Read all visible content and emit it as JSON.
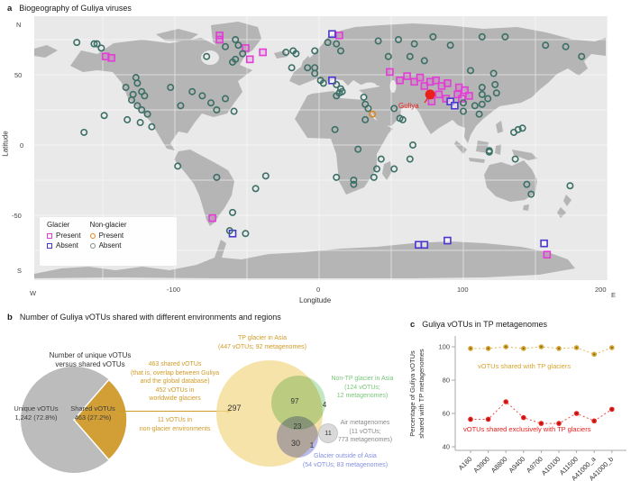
{
  "colors": {
    "glacier_present": "#e23ed6",
    "glacier_absent": "#4936cf",
    "nonglacier_present": "#e0861f",
    "nonglacier_absent": "#3c6f66",
    "guliya_red": "#e8211d",
    "gold": "#cf9b28",
    "pie_gray": "#bcbcbc",
    "pie_gold": "#d29e36",
    "venn_yellow": "#f3d98d",
    "venn_green": "#8fcf8f",
    "venn_blue": "#7b82d8",
    "venn_gray": "#d9d9d9",
    "land": "#b5b5b5",
    "sea": "#e9e9e9"
  },
  "panel_a": {
    "label": "a",
    "title": "Biogeography of Guliya viruses",
    "x_label": "Longitude",
    "y_label": "Latitude",
    "x_ticks": [
      "W",
      "-100",
      "0",
      "100",
      "200",
      "E"
    ],
    "y_ticks": [
      "N",
      "50",
      "0",
      "-50",
      "S"
    ],
    "legend": {
      "glacier": "Glacier",
      "nonglacier": "Non-glacier",
      "present": "Present",
      "absent": "Absent"
    },
    "guliya_label": "Guliya"
  },
  "panel_b": {
    "label": "b",
    "title": "Number of Guliya vOTUs shared with different environments and regions",
    "pie_heading_line1": "Number of unique vOTUs",
    "pie_heading_line2": "versus shared vOTUs",
    "pie_labels": {
      "unique_name": "Unique vOTUs",
      "unique_value": "1,242 (72.8%)",
      "shared_name": "Shared vOTUs",
      "shared_value": "463 (27.2%)"
    },
    "arrow_text": {
      "l1": "463 shared vOTUs",
      "l2": "(that is, overlap between Guliya",
      "l3": "and the global database)",
      "l4": "452 vOTUs in",
      "l5": "worldwide glaciers",
      "l6": "11 vOTUs in",
      "l7": "non-glacier environments"
    },
    "venn": {
      "tp_label1": "TP glacier in Asia",
      "tp_label2": "(447 vOTUs; 92 metagenomes)",
      "nontp_label1": "Non-TP glacier in Asia",
      "nontp_label2": "(124 vOTUs;",
      "nontp_label3": "12 metagenomes)",
      "air_label1": "Air metagenomes",
      "air_label2": "(11 vOTUs;",
      "air_label3": "773 metagenomes)",
      "outside_label1": "Glacier outside of Asia",
      "outside_label2": "(54 vOTUs; 83 metagenomes)",
      "counts": {
        "tp_only": "297",
        "tp_nontp": "97",
        "nontp_only": "4",
        "tp_nontp_outside": "23",
        "tp_outside": "30",
        "outside_only": "1",
        "air": "11"
      }
    }
  },
  "panel_c": {
    "label": "c",
    "title": "Guliya vOTUs in TP metagenomes"
  },
  "chart_data": [
    {
      "type": "scatter",
      "title": "Biogeography of Guliya viruses",
      "xlabel": "Longitude",
      "ylabel": "Latitude",
      "x_ticks": [
        "W",
        "-100",
        "0",
        "100",
        "200",
        "E"
      ],
      "y_ticks": [
        "N",
        "50",
        "0",
        "-50",
        "S"
      ],
      "note": "points are [longitude, latitude]",
      "series": [
        {
          "name": "Glacier Present",
          "marker": "square",
          "color": "#e23ed6",
          "fill": "rgba(226,62,214,0.18)",
          "points": [
            [
              56,
              46
            ],
            [
              61,
              49
            ],
            [
              66,
              45
            ],
            [
              70,
              48
            ],
            [
              73,
              42
            ],
            [
              77,
              45
            ],
            [
              81,
              46
            ],
            [
              85,
              42
            ],
            [
              89,
              44
            ],
            [
              97,
              41
            ],
            [
              96,
              36
            ],
            [
              99,
              33
            ],
            [
              101,
              39
            ],
            [
              104,
              35
            ],
            [
              88,
              33
            ],
            [
              83,
              36
            ],
            [
              78,
              31
            ],
            [
              -148,
              63
            ],
            [
              -144,
              62
            ],
            [
              -69,
              78
            ],
            [
              -69,
              75
            ],
            [
              -51,
              69
            ],
            [
              -39,
              66
            ],
            [
              -48,
              61
            ],
            [
              14,
              78
            ],
            [
              49,
              52
            ],
            [
              -74,
              -52
            ],
            [
              158,
              -78
            ]
          ]
        },
        {
          "name": "Glacier Absent",
          "marker": "square",
          "color": "#4936cf",
          "fill": "rgba(255,255,255,0.55)",
          "points": [
            [
              9,
              79
            ],
            [
              9,
              46
            ],
            [
              91,
              31
            ],
            [
              94,
              28
            ],
            [
              -60,
              -63
            ],
            [
              69,
              -71
            ],
            [
              73,
              -71
            ],
            [
              89,
              -68
            ],
            [
              156,
              -70
            ]
          ]
        },
        {
          "name": "Non-glacier Present",
          "marker": "circle",
          "color": "#e0861f",
          "fill": "none",
          "points": [
            [
              37,
              22
            ]
          ]
        },
        {
          "name": "Non-glacier Absent",
          "marker": "circle",
          "color": "#3c6f66",
          "fill": "none",
          "points": [
            [
              -168,
              73
            ],
            [
              -156,
              72
            ],
            [
              -154,
              72
            ],
            [
              -151,
              69
            ],
            [
              -127,
              48
            ],
            [
              -126,
              44
            ],
            [
              -123,
              38
            ],
            [
              -121,
              35
            ],
            [
              -149,
              21
            ],
            [
              -133,
              18
            ],
            [
              -124,
              16
            ],
            [
              -163,
              9
            ],
            [
              -134,
              41
            ],
            [
              -129,
              36
            ],
            [
              -130,
              32
            ],
            [
              -126,
              28
            ],
            [
              -123,
              25
            ],
            [
              -119,
              22
            ],
            [
              -116,
              13
            ],
            [
              -103,
              41
            ],
            [
              -96,
              28
            ],
            [
              -88,
              38
            ],
            [
              -81,
              35
            ],
            [
              -75,
              30
            ],
            [
              -71,
              25
            ],
            [
              -65,
              33
            ],
            [
              -59,
              24
            ],
            [
              -78,
              63
            ],
            [
              -65,
              70
            ],
            [
              -58,
              75
            ],
            [
              -56,
              71
            ],
            [
              -53,
              65
            ],
            [
              -58,
              61
            ],
            [
              -60,
              59
            ],
            [
              -23,
              66
            ],
            [
              -18,
              67
            ],
            [
              -16,
              65
            ],
            [
              -3,
              67
            ],
            [
              6,
              73
            ],
            [
              12,
              72
            ],
            [
              15,
              67
            ],
            [
              -19,
              55
            ],
            [
              -8,
              55
            ],
            [
              -3,
              55
            ],
            [
              -3,
              51
            ],
            [
              1,
              46
            ],
            [
              3,
              44
            ],
            [
              12,
              43
            ],
            [
              15,
              40
            ],
            [
              14,
              37
            ],
            [
              16,
              38
            ],
            [
              31,
              34
            ],
            [
              32,
              29
            ],
            [
              34,
              26
            ],
            [
              32,
              18
            ],
            [
              12,
              35
            ],
            [
              52,
              26
            ],
            [
              56,
              19
            ],
            [
              58,
              18
            ],
            [
              11,
              11
            ],
            [
              27,
              -3
            ],
            [
              12,
              -23
            ],
            [
              24,
              -25
            ],
            [
              24,
              -28
            ],
            [
              38,
              -23
            ],
            [
              40,
              -17
            ],
            [
              52,
              -17
            ],
            [
              43,
              -10
            ],
            [
              63,
              -10
            ],
            [
              65,
              0
            ],
            [
              41,
              74
            ],
            [
              55,
              75
            ],
            [
              66,
              72
            ],
            [
              79,
              77
            ],
            [
              91,
              71
            ],
            [
              113,
              77
            ],
            [
              129,
              77
            ],
            [
              157,
              71
            ],
            [
              171,
              70
            ],
            [
              182,
              63
            ],
            [
              48,
              63
            ],
            [
              63,
              63
            ],
            [
              73,
              60
            ],
            [
              105,
              53
            ],
            [
              121,
              51
            ],
            [
              122,
              43
            ],
            [
              113,
              41
            ],
            [
              123,
              37
            ],
            [
              113,
              36
            ],
            [
              117,
              33
            ],
            [
              113,
              29
            ],
            [
              100,
              30
            ],
            [
              108,
              28
            ],
            [
              100,
              24
            ],
            [
              111,
              22
            ],
            [
              135,
              9
            ],
            [
              138,
              11
            ],
            [
              141,
              12
            ],
            [
              118,
              -4
            ],
            [
              118,
              -5
            ],
            [
              136,
              -10
            ],
            [
              144,
              -28
            ],
            [
              147,
              -35
            ],
            [
              174,
              -29
            ],
            [
              -98,
              -15
            ],
            [
              -71,
              -23
            ],
            [
              -37,
              -22
            ],
            [
              -44,
              -31
            ],
            [
              -60,
              -48
            ],
            [
              -51,
              -63
            ],
            [
              -62,
              -61
            ]
          ]
        },
        {
          "name": "Guliya",
          "marker": "dot",
          "color": "#e8211d",
          "fill": "#e8211d",
          "points": [
            [
              77,
              36
            ]
          ]
        }
      ]
    },
    {
      "type": "pie",
      "title": "Number of unique vOTUs versus shared vOTUs",
      "labels": [
        "Unique vOTUs",
        "Shared vOTUs"
      ],
      "values": [
        1242,
        463
      ],
      "display": [
        "1,242 (72.8%)",
        "463 (27.2%)"
      ],
      "pct": [
        72.8,
        27.2
      ],
      "colors": [
        "#bcbcbc",
        "#d29e36"
      ]
    },
    {
      "type": "line",
      "title": "Guliya vOTUs in TP metagenomes",
      "ylabel_line1": "Percentage of Guliya vOTUs",
      "ylabel_line2": "shared with TP metagenomes",
      "ylim": [
        40,
        100
      ],
      "yticks": [
        100,
        80,
        60,
        40
      ],
      "categories": [
        "A160",
        "A3900",
        "A8800",
        "A9400",
        "A9700",
        "A10100",
        "A11500",
        "A41000_a",
        "A41000_b"
      ],
      "series": [
        {
          "name": "vOTUs shared with TP glaciers",
          "color": "#d4a42f",
          "values": [
            99,
            99,
            100,
            99,
            100,
            99,
            99.5,
            95.5,
            99.5
          ]
        },
        {
          "name": "vOTUs shared exclusively with TP glaciers",
          "color": "#e8211d",
          "values": [
            56.5,
            56.5,
            67,
            57.5,
            54,
            54,
            60,
            55.5,
            62.5
          ]
        }
      ]
    }
  ]
}
